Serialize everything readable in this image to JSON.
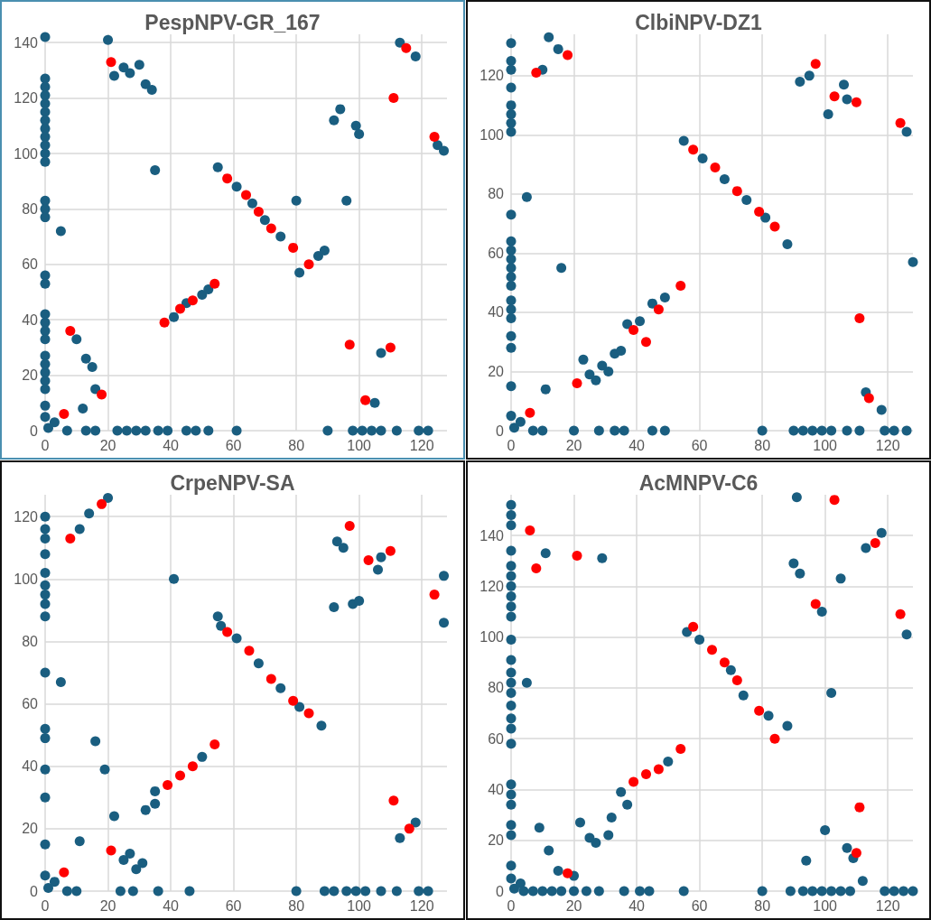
{
  "chart_data": [
    {
      "type": "scatter",
      "title": "PespNPV-GR_167",
      "xlim": [
        0,
        128
      ],
      "xticks": [
        0,
        20,
        40,
        60,
        80,
        100,
        120
      ],
      "ylim": [
        0,
        143
      ],
      "yticks": [
        0,
        20,
        40,
        60,
        80,
        100,
        120,
        140
      ],
      "grid": true,
      "marker": "circle",
      "series": [
        {
          "color": "#1a5e80",
          "x": [
            0,
            0,
            0,
            0,
            0,
            0,
            0,
            0,
            0,
            0,
            0,
            0,
            0,
            0,
            0,
            0,
            0,
            0,
            0,
            0,
            0,
            0,
            0,
            0,
            0,
            0,
            0,
            0,
            1,
            3,
            5,
            10,
            12,
            13,
            15,
            16,
            20,
            22,
            25,
            27,
            30,
            32,
            34,
            35,
            41,
            45,
            50,
            52,
            55,
            61,
            66,
            70,
            75,
            80,
            81,
            87,
            89,
            92,
            94,
            96,
            99,
            100,
            105,
            107,
            113,
            118,
            125,
            127,
            7,
            13,
            16,
            23,
            26,
            29,
            32,
            36,
            39,
            45,
            48,
            52,
            61,
            90,
            98,
            101,
            104,
            107,
            112,
            119,
            122
          ],
          "values": [
            142,
            127,
            124,
            121,
            118,
            115,
            112,
            109,
            106,
            103,
            100,
            97,
            83,
            80,
            77,
            56,
            53,
            42,
            39,
            36,
            33,
            27,
            24,
            21,
            18,
            15,
            9,
            5,
            1,
            3,
            72,
            33,
            8,
            26,
            23,
            15,
            141,
            128,
            131,
            129,
            132,
            125,
            123,
            94,
            41,
            46,
            49,
            51,
            95,
            88,
            82,
            76,
            70,
            83,
            57,
            63,
            65,
            112,
            116,
            83,
            110,
            107,
            10,
            28,
            140,
            135,
            103,
            101,
            0,
            0,
            0,
            0,
            0,
            0,
            0,
            0,
            0,
            0,
            0,
            0,
            0,
            0,
            0,
            0,
            0,
            0,
            0,
            0,
            0
          ]
        },
        {
          "color": "#ff0000",
          "x": [
            6,
            8,
            18,
            21,
            38,
            43,
            47,
            54,
            58,
            64,
            68,
            72,
            79,
            84,
            97,
            102,
            110,
            111,
            115,
            124
          ],
          "values": [
            6,
            36,
            13,
            133,
            39,
            44,
            47,
            53,
            91,
            85,
            79,
            73,
            66,
            60,
            31,
            11,
            30,
            120,
            138,
            106
          ]
        }
      ]
    },
    {
      "type": "scatter",
      "title": "ClbiNPV-DZ1",
      "xlim": [
        0,
        128
      ],
      "xticks": [
        0,
        20,
        40,
        60,
        80,
        100,
        120
      ],
      "ylim": [
        0,
        134
      ],
      "yticks": [
        0,
        20,
        40,
        60,
        80,
        100,
        120
      ],
      "grid": true,
      "marker": "circle",
      "series": [
        {
          "color": "#1a5e80",
          "x": [
            0,
            0,
            0,
            0,
            0,
            0,
            0,
            0,
            0,
            0,
            0,
            0,
            0,
            0,
            0,
            0,
            0,
            0,
            0,
            0,
            0,
            0,
            1,
            3,
            5,
            10,
            11,
            12,
            15,
            16,
            23,
            25,
            27,
            29,
            31,
            33,
            35,
            37,
            41,
            45,
            49,
            55,
            61,
            68,
            75,
            81,
            88,
            92,
            95,
            101,
            106,
            107,
            113,
            118,
            126,
            128,
            7,
            10,
            20,
            28,
            33,
            36,
            45,
            49,
            80,
            90,
            93,
            96,
            99,
            102,
            107,
            111,
            119,
            122,
            126
          ],
          "values": [
            131,
            125,
            122,
            116,
            110,
            107,
            104,
            101,
            73,
            64,
            61,
            58,
            55,
            52,
            49,
            44,
            41,
            38,
            32,
            28,
            15,
            5,
            1,
            3,
            79,
            122,
            14,
            133,
            129,
            55,
            24,
            19,
            17,
            22,
            20,
            26,
            27,
            36,
            37,
            43,
            45,
            98,
            92,
            85,
            78,
            72,
            63,
            118,
            120,
            107,
            117,
            112,
            13,
            7,
            101,
            57,
            0,
            0,
            0,
            0,
            0,
            0,
            0,
            0,
            0,
            0,
            0,
            0,
            0,
            0,
            0,
            0,
            0,
            0,
            0
          ]
        },
        {
          "color": "#ff0000",
          "x": [
            6,
            8,
            18,
            21,
            39,
            43,
            47,
            54,
            58,
            65,
            72,
            79,
            84,
            97,
            103,
            110,
            111,
            114,
            124
          ],
          "values": [
            6,
            121,
            127,
            16,
            34,
            30,
            41,
            49,
            95,
            89,
            81,
            74,
            69,
            124,
            113,
            111,
            38,
            11,
            104
          ]
        }
      ]
    },
    {
      "type": "scatter",
      "title": "CrpeNPV-SA",
      "xlim": [
        0,
        128
      ],
      "xticks": [
        0,
        20,
        40,
        60,
        80,
        100,
        120
      ],
      "ylim": [
        0,
        127
      ],
      "yticks": [
        0,
        20,
        40,
        60,
        80,
        100,
        120
      ],
      "grid": true,
      "marker": "circle",
      "series": [
        {
          "color": "#1a5e80",
          "x": [
            0,
            0,
            0,
            0,
            0,
            0,
            0,
            0,
            0,
            0,
            0,
            0,
            0,
            0,
            0,
            0,
            1,
            3,
            5,
            11,
            14,
            20,
            11,
            16,
            19,
            22,
            25,
            27,
            29,
            31,
            32,
            35,
            35,
            41,
            50,
            55,
            56,
            61,
            68,
            75,
            81,
            88,
            92,
            93,
            95,
            98,
            100,
            106,
            107,
            113,
            118,
            127,
            127,
            7,
            10,
            24,
            28,
            36,
            46,
            80,
            89,
            92,
            96,
            99,
            102,
            107,
            112,
            119,
            122
          ],
          "values": [
            120,
            116,
            113,
            108,
            102,
            98,
            95,
            92,
            88,
            70,
            52,
            49,
            39,
            30,
            15,
            5,
            1,
            3,
            67,
            116,
            121,
            126,
            16,
            48,
            39,
            24,
            10,
            12,
            7,
            9,
            26,
            28,
            32,
            100,
            43,
            88,
            85,
            81,
            73,
            65,
            59,
            53,
            91,
            112,
            110,
            92,
            93,
            103,
            107,
            17,
            22,
            101,
            86,
            0,
            0,
            0,
            0,
            0,
            0,
            0,
            0,
            0,
            0,
            0,
            0,
            0,
            0,
            0,
            0
          ]
        },
        {
          "color": "#ff0000",
          "x": [
            6,
            8,
            18,
            21,
            39,
            43,
            47,
            54,
            58,
            65,
            72,
            79,
            84,
            97,
            103,
            110,
            111,
            116,
            124
          ],
          "values": [
            6,
            113,
            124,
            13,
            34,
            37,
            40,
            47,
            83,
            77,
            68,
            61,
            57,
            117,
            106,
            109,
            29,
            20,
            95
          ]
        }
      ]
    },
    {
      "type": "scatter",
      "title": "AcMNPV-C6",
      "xlim": [
        0,
        128
      ],
      "xticks": [
        0,
        20,
        40,
        60,
        80,
        100,
        120
      ],
      "ylim": [
        0,
        156
      ],
      "yticks": [
        0,
        20,
        40,
        60,
        80,
        100,
        120,
        140
      ],
      "grid": true,
      "marker": "circle",
      "series": [
        {
          "color": "#1a5e80",
          "x": [
            0,
            0,
            0,
            0,
            0,
            0,
            0,
            0,
            0,
            0,
            0,
            0,
            0,
            0,
            0,
            0,
            0,
            0,
            0,
            0,
            0,
            0,
            0,
            0,
            0,
            0,
            1,
            3,
            5,
            9,
            11,
            12,
            15,
            20,
            22,
            25,
            27,
            29,
            31,
            32,
            35,
            37,
            50,
            56,
            60,
            70,
            74,
            82,
            88,
            90,
            91,
            92,
            94,
            99,
            100,
            102,
            105,
            107,
            109,
            112,
            113,
            118,
            126,
            4,
            7,
            10,
            13,
            16,
            20,
            24,
            28,
            36,
            41,
            44,
            55,
            80,
            89,
            93,
            96,
            99,
            102,
            105,
            108,
            119,
            122,
            125,
            128
          ],
          "values": [
            152,
            148,
            144,
            134,
            128,
            124,
            120,
            116,
            112,
            108,
            99,
            91,
            86,
            82,
            78,
            73,
            68,
            64,
            58,
            42,
            38,
            34,
            26,
            22,
            10,
            5,
            1,
            3,
            82,
            25,
            133,
            16,
            8,
            6,
            27,
            21,
            19,
            131,
            22,
            29,
            39,
            34,
            51,
            102,
            99,
            87,
            77,
            69,
            65,
            129,
            155,
            125,
            12,
            110,
            24,
            78,
            123,
            17,
            13,
            4,
            135,
            141,
            101,
            0,
            0,
            0,
            0,
            0,
            0,
            0,
            0,
            0,
            0,
            0,
            0,
            0,
            0,
            0,
            0,
            0,
            0,
            0,
            0,
            0,
            0,
            0,
            0
          ]
        },
        {
          "color": "#ff0000",
          "x": [
            6,
            8,
            18,
            21,
            39,
            43,
            47,
            54,
            58,
            64,
            68,
            72,
            79,
            84,
            97,
            103,
            110,
            111,
            116,
            124
          ],
          "values": [
            142,
            127,
            7,
            132,
            43,
            46,
            48,
            56,
            104,
            95,
            90,
            83,
            71,
            60,
            113,
            154,
            15,
            33,
            137,
            109
          ]
        }
      ]
    }
  ]
}
